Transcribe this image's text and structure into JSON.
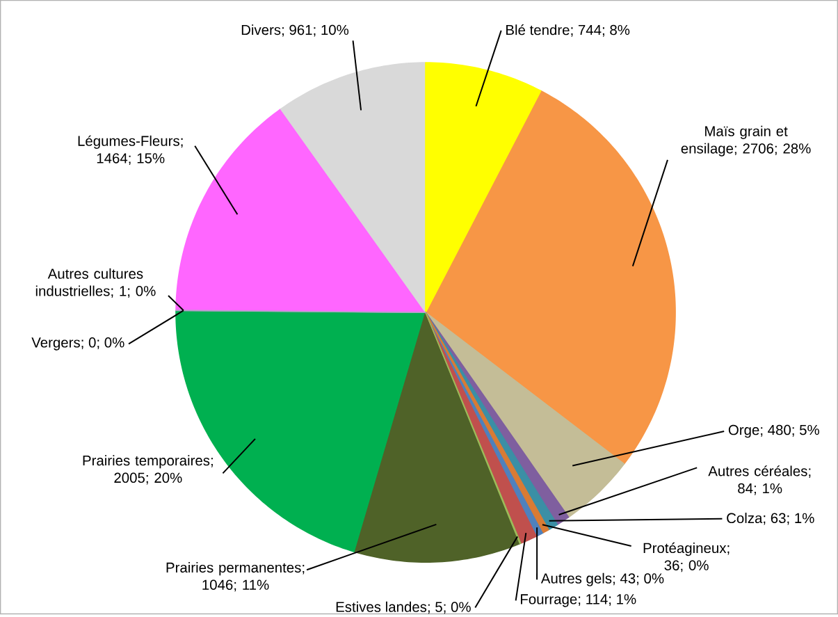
{
  "chart_data": {
    "type": "pie",
    "categories": [
      "Blé tendre",
      "Maïs grain et ensilage",
      "Orge",
      "Autres céréales",
      "Colza",
      "Protéagineux",
      "Autres gels",
      "Fourrage",
      "Estives landes",
      "Prairies permanentes",
      "Prairies temporaires",
      "Vergers",
      "Autres cultures industrielles",
      "Légumes-Fleurs",
      "Divers"
    ],
    "values": [
      744,
      2706,
      480,
      84,
      63,
      36,
      43,
      114,
      5,
      1046,
      2005,
      0,
      1,
      1464,
      961
    ],
    "value_labels": [
      "; 744; 8%",
      "; 2706; 28%",
      "; 480; 5%",
      "; 84; 1%",
      "; 63; 1%",
      "; 36; 0%",
      "; 43; 0%",
      "; 114; 1%",
      "; 5; 0%",
      "; 1046; 11%",
      "; 2005; 20%",
      "; 0; 0%",
      "; 1; 0%",
      "; 1464; 15%",
      "; 961; 10%"
    ],
    "colors": [
      "#ffff00",
      "#f79646",
      "#c4bd97",
      "#7f5f9f",
      "#3b8fa5",
      "#d97b35",
      "#4f81bd",
      "#c0504d",
      "#9bbb59",
      "#4f6228",
      "#00b050",
      "#8eb4e3",
      "#b3a2c7",
      "#ff66ff",
      "#d9d9d9"
    ]
  }
}
